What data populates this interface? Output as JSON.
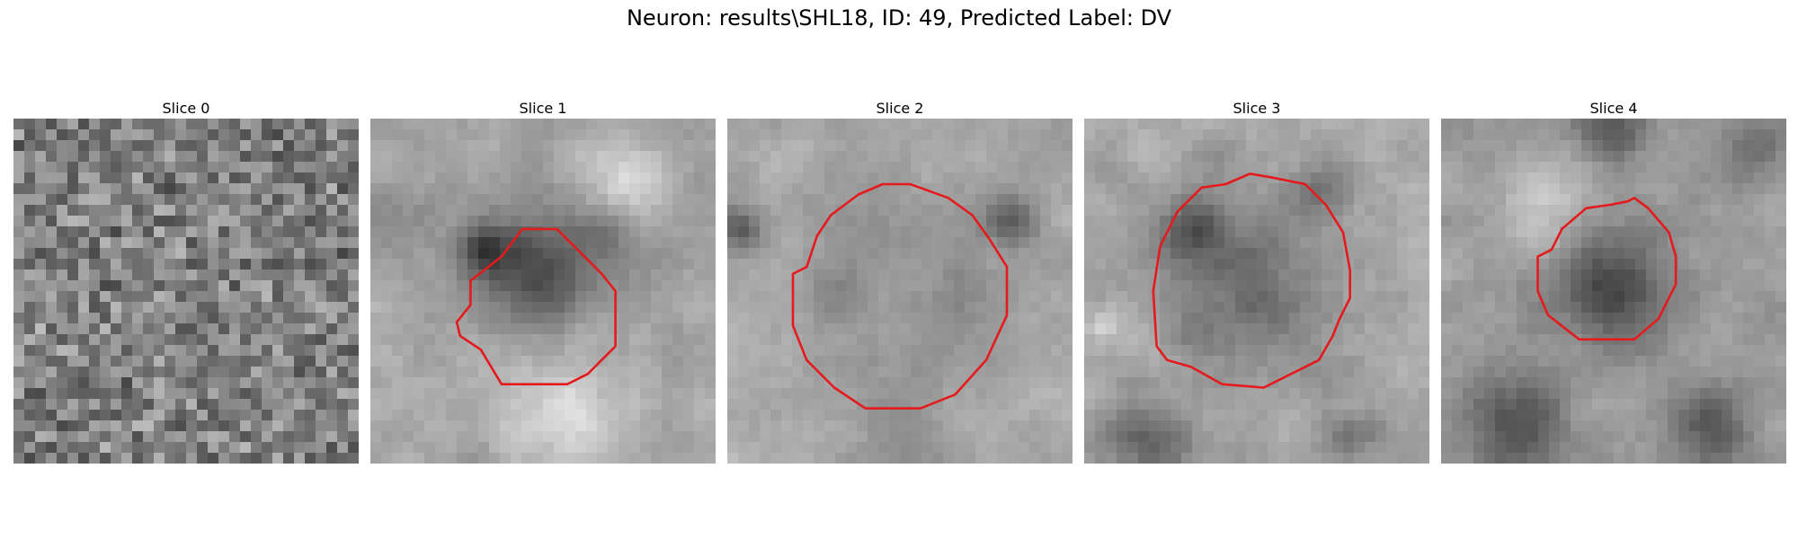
{
  "figure": {
    "title": "Neuron: results\\SHL18, ID: 49, Predicted Label: DV"
  },
  "panels": [
    {
      "title": "Slice 0",
      "has_contour": false,
      "seed": 11,
      "mean": 0.5,
      "contrast": 0.23,
      "smooth": 0,
      "blobs": []
    },
    {
      "title": "Slice 1",
      "has_contour": true,
      "seed": 23,
      "mean": 0.64,
      "contrast": 0.1,
      "smooth": 2,
      "blobs": [
        [
          0.48,
          0.45,
          0.16,
          -0.38
        ],
        [
          0.32,
          0.38,
          0.07,
          -0.3
        ],
        [
          0.68,
          0.32,
          0.1,
          -0.18
        ],
        [
          0.72,
          0.18,
          0.12,
          0.22
        ],
        [
          0.55,
          0.85,
          0.2,
          0.2
        ],
        [
          0.08,
          0.3,
          0.1,
          -0.1
        ]
      ]
    },
    {
      "title": "Slice 2",
      "has_contour": true,
      "seed": 37,
      "mean": 0.66,
      "contrast": 0.09,
      "smooth": 2,
      "blobs": [
        [
          0.5,
          0.48,
          0.26,
          -0.18
        ],
        [
          0.5,
          0.48,
          0.14,
          0.15
        ],
        [
          0.82,
          0.3,
          0.08,
          -0.28
        ],
        [
          0.03,
          0.32,
          0.06,
          -0.3
        ],
        [
          0.5,
          0.95,
          0.12,
          -0.1
        ]
      ]
    },
    {
      "title": "Slice 3",
      "has_contour": true,
      "seed": 41,
      "mean": 0.66,
      "contrast": 0.1,
      "smooth": 2,
      "blobs": [
        [
          0.48,
          0.5,
          0.24,
          -0.24
        ],
        [
          0.32,
          0.32,
          0.09,
          -0.28
        ],
        [
          0.18,
          0.95,
          0.12,
          -0.25
        ],
        [
          0.78,
          0.92,
          0.1,
          -0.18
        ],
        [
          0.7,
          0.2,
          0.1,
          -0.12
        ],
        [
          0.05,
          0.6,
          0.05,
          0.18
        ]
      ]
    },
    {
      "title": "Slice 4",
      "has_contour": true,
      "seed": 53,
      "mean": 0.62,
      "contrast": 0.1,
      "smooth": 2,
      "blobs": [
        [
          0.5,
          0.48,
          0.17,
          -0.32
        ],
        [
          0.22,
          0.88,
          0.14,
          -0.32
        ],
        [
          0.78,
          0.88,
          0.12,
          -0.28
        ],
        [
          0.5,
          0.04,
          0.1,
          -0.22
        ],
        [
          0.92,
          0.1,
          0.1,
          -0.18
        ],
        [
          0.3,
          0.25,
          0.12,
          0.18
        ]
      ]
    }
  ],
  "colors": {
    "contour": "#e41a1c"
  },
  "contours": {
    "Slice 1": [
      [
        0.38,
        0.4
      ],
      [
        0.44,
        0.32
      ],
      [
        0.54,
        0.32
      ],
      [
        0.59,
        0.37
      ],
      [
        0.67,
        0.45
      ],
      [
        0.71,
        0.5
      ],
      [
        0.71,
        0.66
      ],
      [
        0.63,
        0.74
      ],
      [
        0.57,
        0.77
      ],
      [
        0.38,
        0.77
      ],
      [
        0.32,
        0.67
      ],
      [
        0.26,
        0.63
      ],
      [
        0.25,
        0.59
      ],
      [
        0.29,
        0.54
      ],
      [
        0.29,
        0.47
      ]
    ],
    "Slice 2": [
      [
        0.23,
        0.43
      ],
      [
        0.26,
        0.34
      ],
      [
        0.3,
        0.28
      ],
      [
        0.38,
        0.22
      ],
      [
        0.45,
        0.19
      ],
      [
        0.53,
        0.19
      ],
      [
        0.64,
        0.23
      ],
      [
        0.71,
        0.28
      ],
      [
        0.76,
        0.35
      ],
      [
        0.81,
        0.43
      ],
      [
        0.81,
        0.57
      ],
      [
        0.75,
        0.7
      ],
      [
        0.66,
        0.8
      ],
      [
        0.56,
        0.84
      ],
      [
        0.4,
        0.84
      ],
      [
        0.31,
        0.78
      ],
      [
        0.23,
        0.7
      ],
      [
        0.19,
        0.6
      ],
      [
        0.19,
        0.45
      ]
    ],
    "Slice 3": [
      [
        0.22,
        0.37
      ],
      [
        0.27,
        0.27
      ],
      [
        0.34,
        0.2
      ],
      [
        0.41,
        0.19
      ],
      [
        0.48,
        0.16
      ],
      [
        0.54,
        0.17
      ],
      [
        0.64,
        0.19
      ],
      [
        0.7,
        0.25
      ],
      [
        0.75,
        0.33
      ],
      [
        0.77,
        0.44
      ],
      [
        0.77,
        0.52
      ],
      [
        0.74,
        0.58
      ],
      [
        0.72,
        0.63
      ],
      [
        0.68,
        0.7
      ],
      [
        0.62,
        0.73
      ],
      [
        0.52,
        0.78
      ],
      [
        0.4,
        0.77
      ],
      [
        0.31,
        0.72
      ],
      [
        0.24,
        0.7
      ],
      [
        0.21,
        0.66
      ],
      [
        0.2,
        0.5
      ]
    ],
    "Slice 4": [
      [
        0.32,
        0.38
      ],
      [
        0.35,
        0.32
      ],
      [
        0.42,
        0.26
      ],
      [
        0.49,
        0.25
      ],
      [
        0.54,
        0.24
      ],
      [
        0.56,
        0.23
      ],
      [
        0.6,
        0.26
      ],
      [
        0.66,
        0.33
      ],
      [
        0.68,
        0.4
      ],
      [
        0.68,
        0.48
      ],
      [
        0.63,
        0.58
      ],
      [
        0.56,
        0.64
      ],
      [
        0.4,
        0.64
      ],
      [
        0.31,
        0.57
      ],
      [
        0.28,
        0.5
      ],
      [
        0.28,
        0.4
      ]
    ]
  }
}
